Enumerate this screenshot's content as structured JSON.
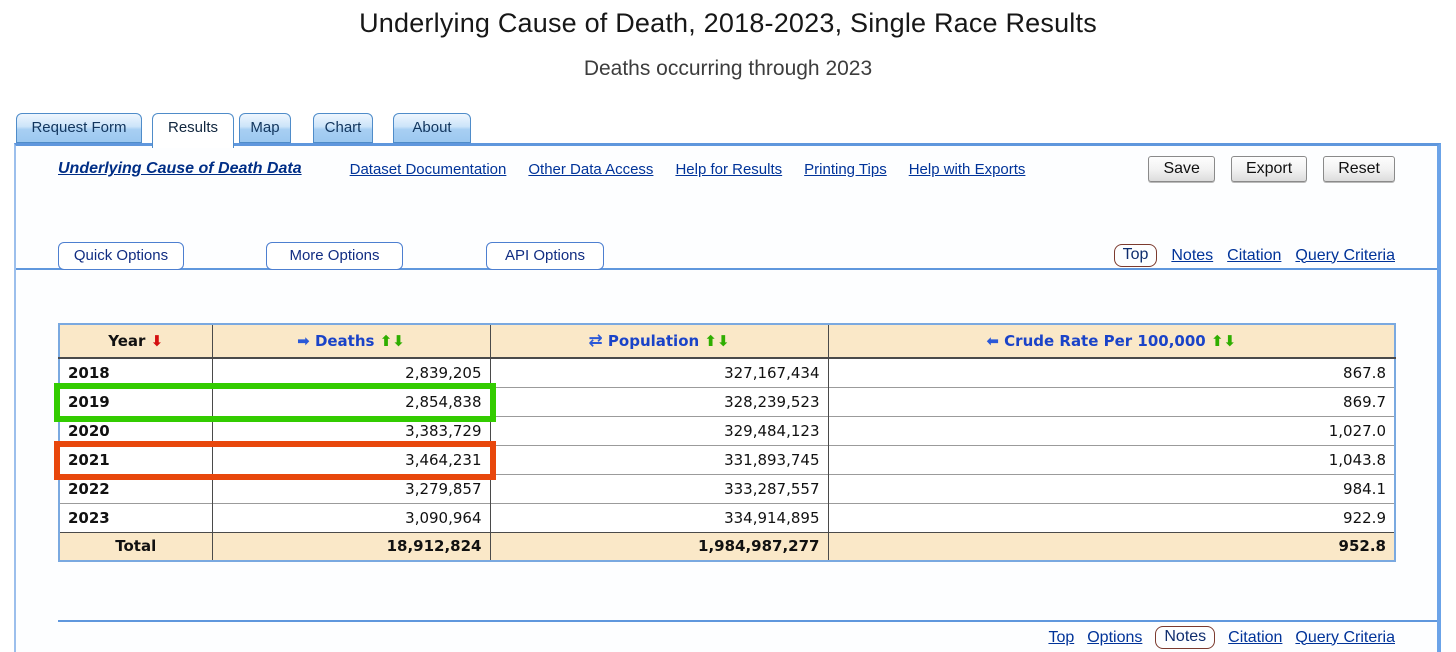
{
  "page": {
    "title": "Underlying Cause of Death, 2018-2023, Single Race Results",
    "subtitle": "Deaths occurring through 2023"
  },
  "tabs": [
    {
      "label": "Request Form",
      "active": false
    },
    {
      "label": "Results",
      "active": true
    },
    {
      "label": "Map",
      "active": false
    },
    {
      "label": "Chart",
      "active": false
    },
    {
      "label": "About",
      "active": false
    }
  ],
  "toolbar": {
    "dataset_link": "Underlying Cause of Death Data",
    "doc_links": [
      "Dataset Documentation",
      "Other Data Access",
      "Help for Results",
      "Printing Tips",
      "Help with Exports"
    ],
    "save": "Save",
    "export": "Export",
    "reset": "Reset"
  },
  "options": {
    "quick": "Quick Options",
    "more": "More Options",
    "api": "API Options",
    "top": "Top",
    "notes": "Notes",
    "citation": "Citation",
    "query": "Query Criteria"
  },
  "icons": {
    "sort_desc": "⬇",
    "sort_asc": "⬆",
    "move_right": "➡",
    "move_left": "⬅",
    "swap": "⇄"
  },
  "table": {
    "headers": {
      "year": "Year",
      "deaths": "Deaths",
      "population": "Population",
      "crude_rate": "Crude Rate Per 100,000"
    },
    "rows": [
      {
        "year": "2018",
        "deaths": "2,839,205",
        "population": "327,167,434",
        "crude_rate": "867.8",
        "highlight": "none"
      },
      {
        "year": "2019",
        "deaths": "2,854,838",
        "population": "328,239,523",
        "crude_rate": "869.7",
        "highlight": "green"
      },
      {
        "year": "2020",
        "deaths": "3,383,729",
        "population": "329,484,123",
        "crude_rate": "1,027.0",
        "highlight": "none"
      },
      {
        "year": "2021",
        "deaths": "3,464,231",
        "population": "331,893,745",
        "crude_rate": "1,043.8",
        "highlight": "orange"
      },
      {
        "year": "2022",
        "deaths": "3,279,857",
        "population": "333,287,557",
        "crude_rate": "984.1",
        "highlight": "none"
      },
      {
        "year": "2023",
        "deaths": "3,090,964",
        "population": "334,914,895",
        "crude_rate": "922.9",
        "highlight": "none"
      }
    ],
    "total": {
      "year": "Total",
      "deaths": "18,912,824",
      "population": "1,984,987,277",
      "crude_rate": "952.8"
    },
    "highlight_colors": {
      "green": "#33cc00",
      "orange": "#e8470c"
    },
    "header_bg": "#fae8c8"
  },
  "footer": {
    "top": "Top",
    "options": "Options",
    "notes": "Notes",
    "citation": "Citation",
    "query": "Query Criteria"
  }
}
